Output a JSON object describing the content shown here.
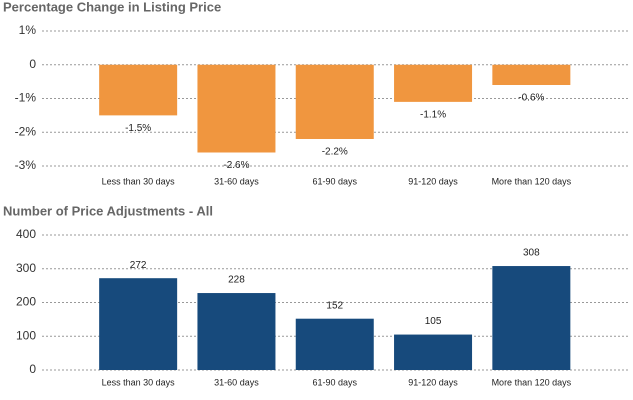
{
  "chart_data": [
    {
      "type": "bar",
      "title": "Percentage Change in Listing Price",
      "categories": [
        "Less than 30 days",
        "31-60 days",
        "61-90 days",
        "91-120 days",
        "More than 120 days"
      ],
      "values": [
        -1.5,
        -2.6,
        -2.2,
        -1.1,
        -0.6
      ],
      "value_labels": [
        "-1.5%",
        "-2.6%",
        "-2.2%",
        "-1.1%",
        "-0.6%"
      ],
      "color": "#f0963f",
      "ylim": [
        -3,
        1
      ],
      "yticks": [
        {
          "value": 1,
          "label": "1%"
        },
        0,
        {
          "value": -1,
          "label": "-1%"
        },
        {
          "value": -2,
          "label": "-2%"
        },
        {
          "value": -3,
          "label": "-3%"
        }
      ],
      "grid": true
    },
    {
      "type": "bar",
      "title": "Number of Price Adjustments - All",
      "categories": [
        "Less than 30 days",
        "31-60 days",
        "61-90 days",
        "91-120 days",
        "More than 120 days"
      ],
      "values": [
        272,
        228,
        152,
        105,
        308
      ],
      "color": "#174a7c",
      "ylim": [
        0,
        400
      ],
      "yticks": [
        0,
        100,
        200,
        300,
        400
      ],
      "grid": true
    }
  ]
}
